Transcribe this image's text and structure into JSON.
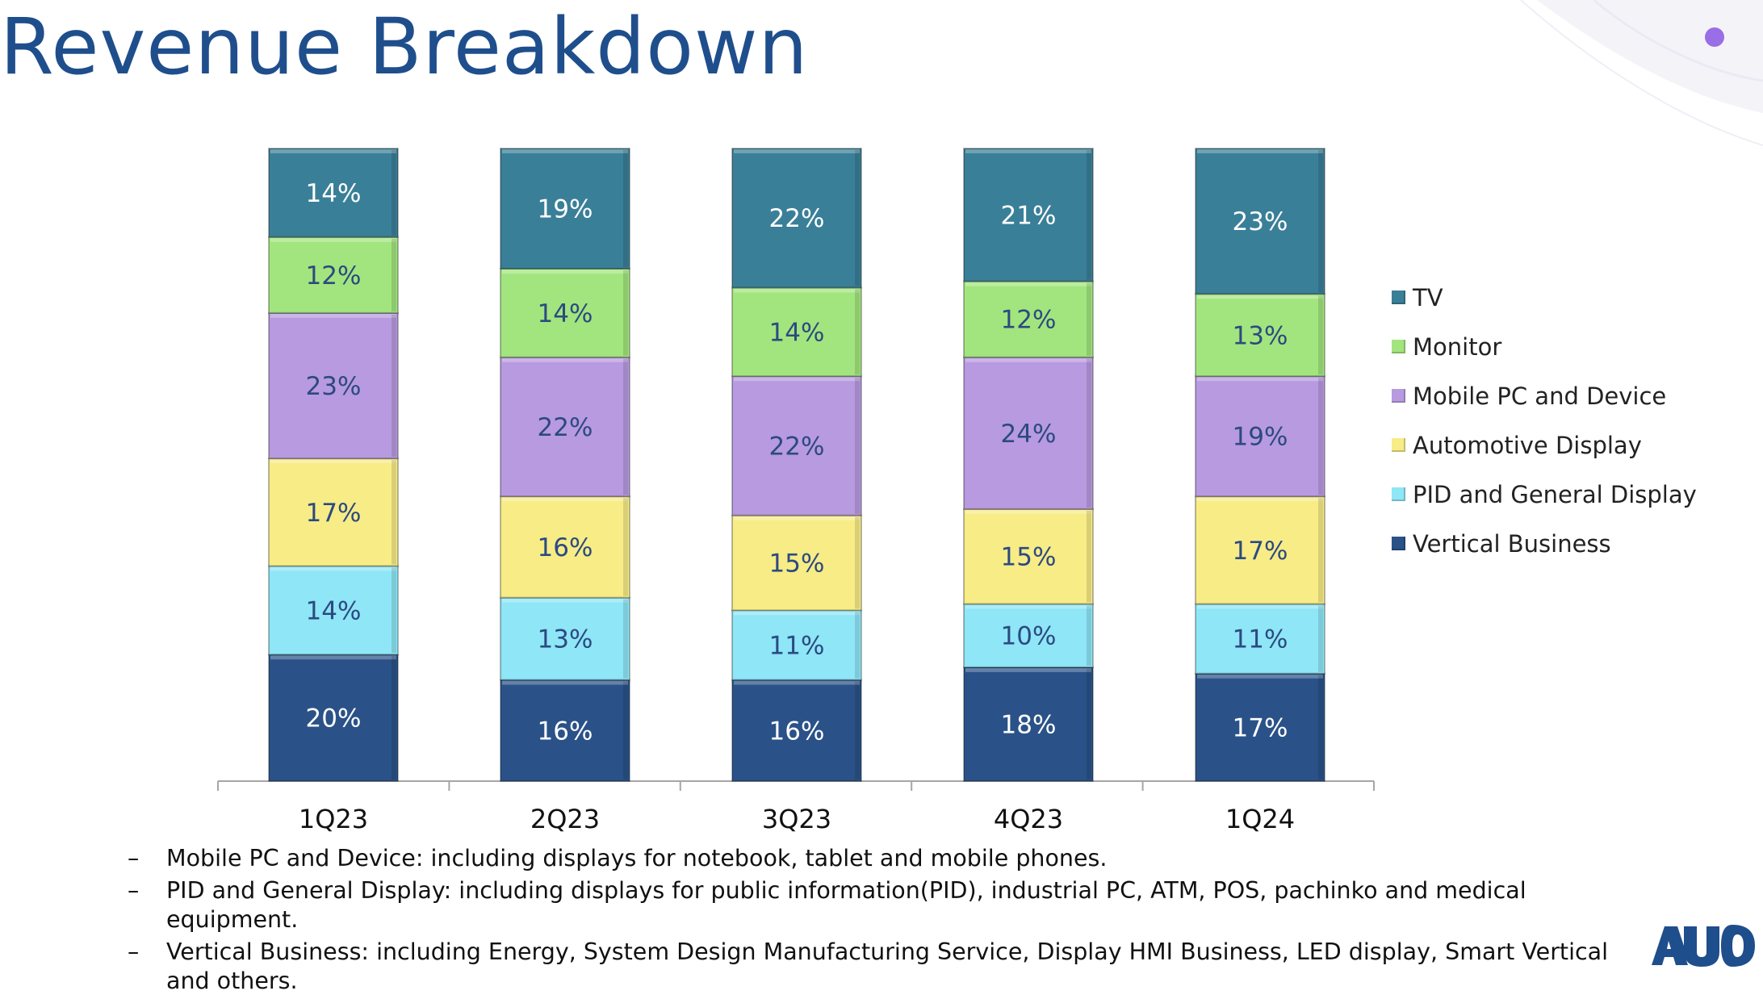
{
  "title": "Revenue Breakdown",
  "colors": {
    "title": "#1f4e8c",
    "dot": "#9a6ee6"
  },
  "chart_data": {
    "type": "bar",
    "stacked": true,
    "categories": [
      "1Q23",
      "2Q23",
      "3Q23",
      "4Q23",
      "1Q24"
    ],
    "series": [
      {
        "name": "Vertical Business",
        "color": "#2a5288",
        "label_color": "#ffffff",
        "values": [
          20,
          16,
          16,
          18,
          17
        ]
      },
      {
        "name": "PID and General Display",
        "color": "#8ee6f6",
        "label_color": "#2c4a80",
        "values": [
          14,
          13,
          11,
          10,
          11
        ]
      },
      {
        "name": "Automotive Display",
        "color": "#f7ec86",
        "label_color": "#2c4a80",
        "values": [
          17,
          16,
          15,
          15,
          17
        ]
      },
      {
        "name": "Mobile PC and Device",
        "color": "#b89ae0",
        "label_color": "#2c4a80",
        "values": [
          23,
          22,
          22,
          24,
          19
        ]
      },
      {
        "name": "Monitor",
        "color": "#a2e57e",
        "label_color": "#2c4a80",
        "values": [
          12,
          14,
          14,
          12,
          13
        ]
      },
      {
        "name": "TV",
        "color": "#3a7f98",
        "label_color": "#ffffff",
        "values": [
          14,
          19,
          22,
          21,
          23
        ]
      }
    ],
    "value_suffix": "%",
    "legend_position": "right",
    "legend_order": [
      "TV",
      "Monitor",
      "Mobile PC and Device",
      "Automotive Display",
      "PID and General Display",
      "Vertical Business"
    ],
    "grid": false
  },
  "notes": [
    {
      "dash": "–",
      "text": "Mobile PC and Device: including displays for notebook, tablet and mobile phones."
    },
    {
      "dash": "–",
      "text": "PID and General Display: including displays for public information(PID), industrial PC, ATM, POS, pachinko and medical equipment."
    },
    {
      "dash": "–",
      "text": "Vertical Business: including Energy, System Design Manufacturing Service, Display HMI Business, LED display, Smart Vertical and others."
    }
  ],
  "logo_text": "AUO"
}
